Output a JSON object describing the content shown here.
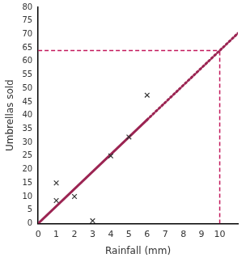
{
  "chart_data": {
    "type": "scatter",
    "x_label": "Rainfall (mm)",
    "y_label": "Umbrellas sold",
    "xlim": [
      0,
      11
    ],
    "xticks": [
      0,
      1,
      2,
      3,
      4,
      5,
      6,
      7,
      8,
      9,
      10
    ],
    "ylim": [
      0,
      80
    ],
    "yticks": [
      0,
      5,
      10,
      15,
      20,
      25,
      30,
      35,
      40,
      45,
      50,
      55,
      60,
      65,
      70,
      75,
      80
    ],
    "grid": false,
    "series": [
      {
        "type": "scatter",
        "marker": "x",
        "color": "#333333",
        "x": [
          1,
          1,
          2,
          3,
          4,
          5,
          6
        ],
        "values": [
          15,
          8.5,
          10,
          1,
          25,
          32,
          47.5
        ]
      },
      {
        "type": "line",
        "line_style": "solid",
        "color": "#9b2452",
        "x": [
          0,
          6
        ],
        "values": [
          0,
          38.4
        ]
      },
      {
        "type": "line",
        "line_style": "dotted",
        "color": "#9b2452",
        "x": [
          6,
          11
        ],
        "values": [
          38.4,
          70.4
        ]
      },
      {
        "type": "line",
        "line_style": "dashed",
        "color": "#c2185b",
        "x": [
          10,
          10
        ],
        "values": [
          0,
          64
        ]
      },
      {
        "type": "line",
        "line_style": "dashed",
        "color": "#c2185b",
        "x": [
          0,
          10
        ],
        "values": [
          64,
          64
        ]
      }
    ]
  }
}
